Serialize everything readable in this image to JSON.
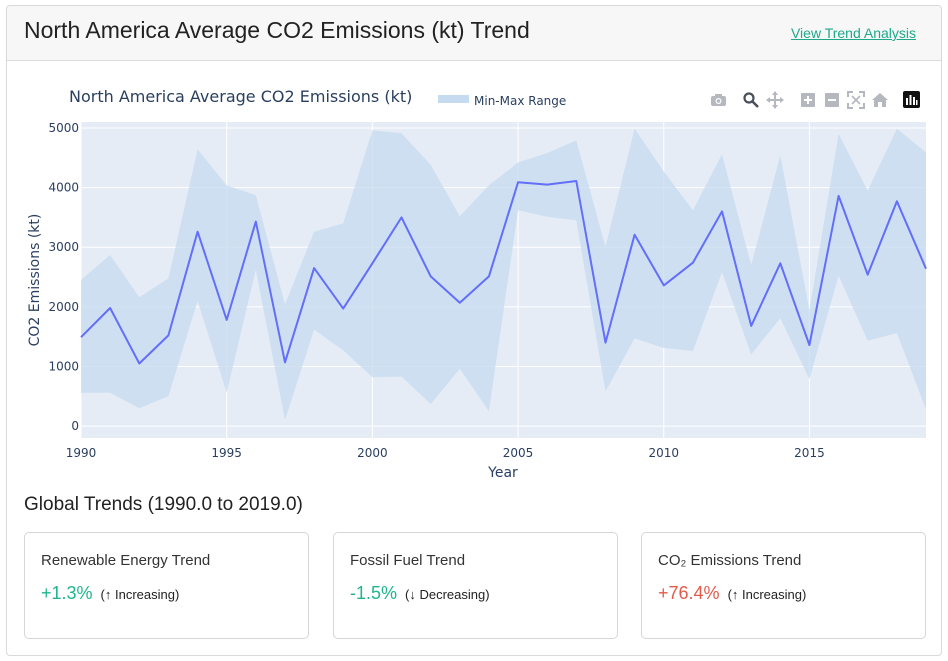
{
  "header": {
    "title": "North America Average CO2 Emissions (kt) Trend",
    "link_label": "View Trend Analysis"
  },
  "chart_data": {
    "type": "line",
    "title": "North America Average CO2 Emissions (kt)",
    "xlabel": "Year",
    "ylabel": "CO2 Emissions (kt)",
    "xlim": [
      1990,
      2019
    ],
    "ylim": [
      -200,
      5100
    ],
    "x_ticks": [
      1990,
      1995,
      2000,
      2005,
      2010,
      2015
    ],
    "y_ticks": [
      0,
      1000,
      2000,
      3000,
      4000,
      5000
    ],
    "legend": {
      "position": "top",
      "entries": [
        "Min-Max Range"
      ]
    },
    "grid": true,
    "x": [
      1990,
      1991,
      1992,
      1993,
      1994,
      1995,
      1996,
      1997,
      1998,
      1999,
      2000,
      2001,
      2002,
      2003,
      2004,
      2005,
      2006,
      2007,
      2008,
      2009,
      2010,
      2011,
      2012,
      2013,
      2014,
      2015,
      2016,
      2017,
      2018,
      2019
    ],
    "series": [
      {
        "values": [
          1490,
          1980,
          1050,
          1520,
          3260,
          1780,
          3430,
          1070,
          2650,
          1970,
          2730,
          3500,
          2510,
          2070,
          2510,
          4090,
          4050,
          4110,
          1400,
          3210,
          2360,
          2740,
          3600,
          1680,
          2730,
          1360,
          3860,
          2540,
          3770,
          2640
        ],
        "color": "#636efa"
      },
      {
        "name": "Min-Max Range",
        "kind": "band",
        "upper": [
          2450,
          2870,
          2160,
          2480,
          4640,
          4040,
          3870,
          2040,
          3260,
          3400,
          4960,
          4910,
          4380,
          3520,
          4040,
          4420,
          4580,
          4790,
          3010,
          4990,
          4270,
          3620,
          4560,
          2700,
          4540,
          1940,
          4900,
          3950,
          4990,
          4590
        ],
        "lower": [
          560,
          560,
          300,
          500,
          2100,
          560,
          2620,
          100,
          1620,
          1270,
          820,
          830,
          370,
          960,
          250,
          3620,
          3510,
          3450,
          580,
          1470,
          1310,
          1260,
          2580,
          1200,
          1810,
          790,
          2520,
          1430,
          1560,
          280
        ],
        "color": "#c6dbef"
      }
    ]
  },
  "modebar": {
    "icons": [
      "camera-icon",
      "zoom-icon",
      "pan-icon",
      "zoom-in-icon",
      "zoom-out-icon",
      "autoscale-icon",
      "reset-axes-icon",
      "plotly-logo-icon"
    ]
  },
  "summary": {
    "title": "Global Trends (1990.0 to 2019.0)",
    "cards": [
      {
        "label": "Renewable Energy Trend",
        "value": "+1.3%",
        "direction": "(↑ Increasing)",
        "color": "#1fb58f"
      },
      {
        "label": "Fossil Fuel Trend",
        "value": "-1.5%",
        "direction": "(↓ Decreasing)",
        "color": "#1fb58f"
      },
      {
        "label": "CO₂ Emissions Trend",
        "value": "+76.4%",
        "direction": "(↑ Increasing)",
        "color": "#e25b4a"
      }
    ]
  }
}
